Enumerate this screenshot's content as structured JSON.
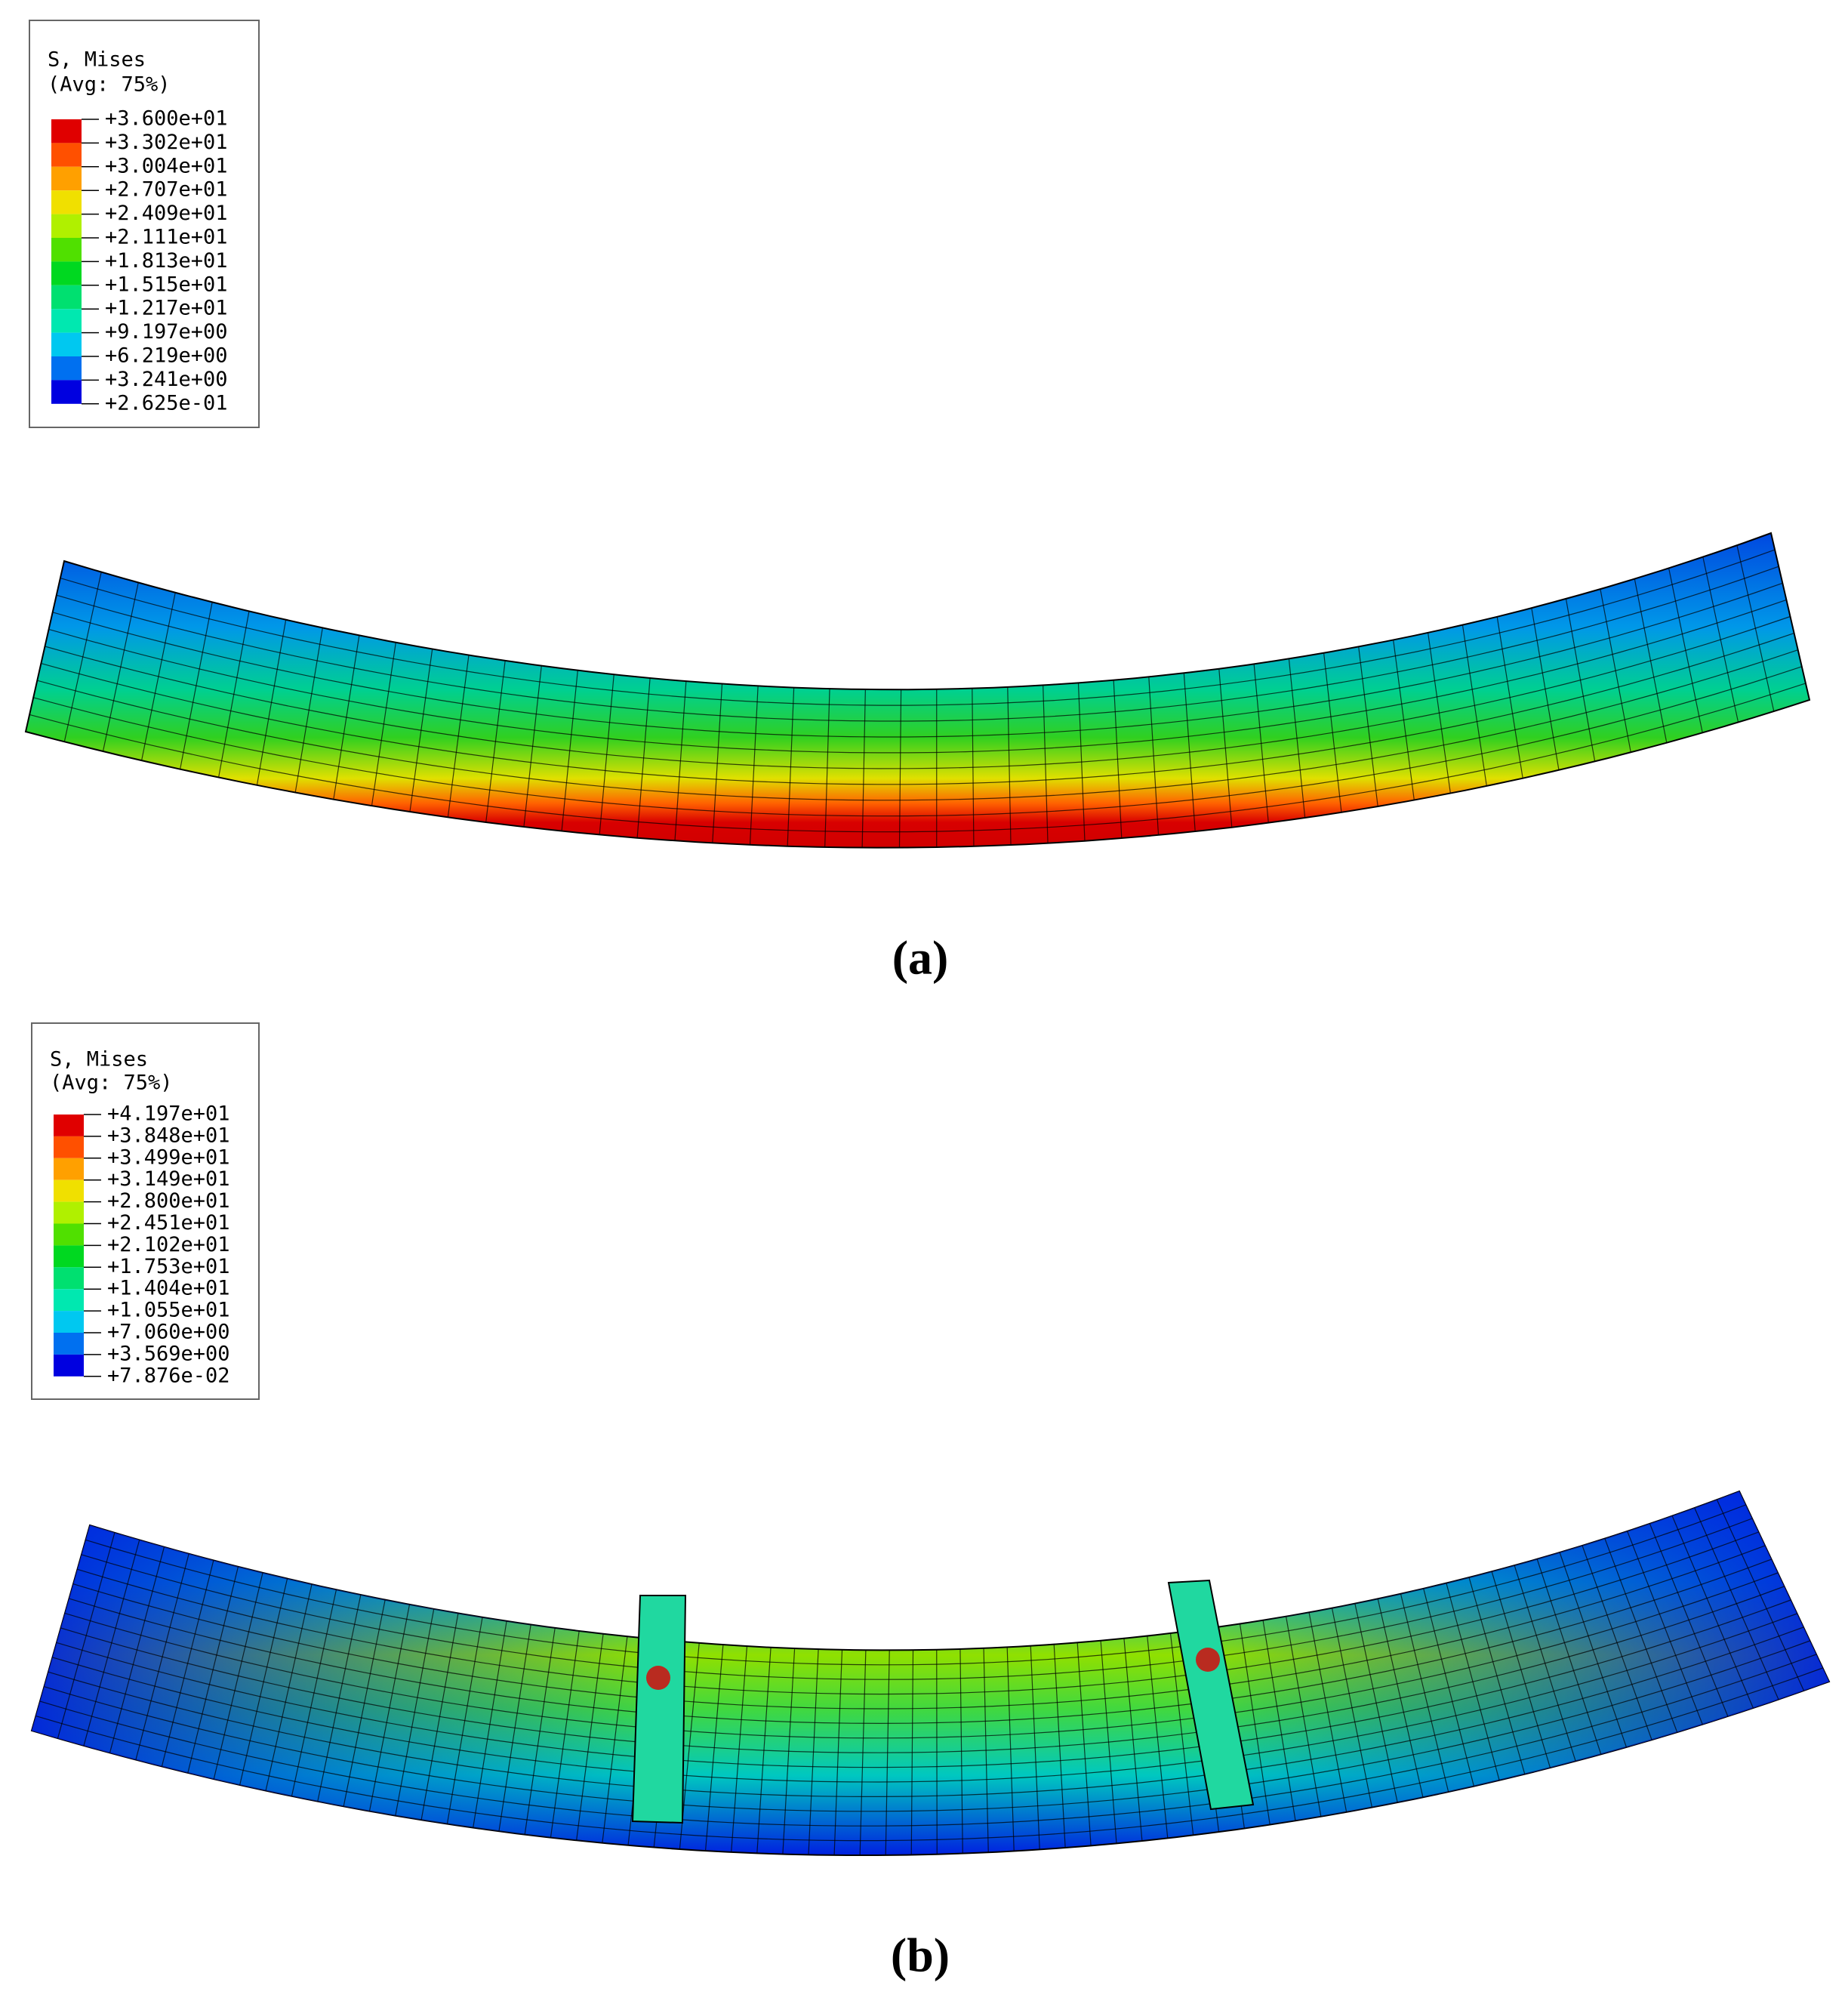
{
  "panels": [
    {
      "legend": {
        "title": "S, Mises",
        "subtitle": "(Avg: 75%)",
        "labels": [
          "+3.600e+01",
          "+3.302e+01",
          "+3.004e+01",
          "+2.707e+01",
          "+2.409e+01",
          "+2.111e+01",
          "+1.813e+01",
          "+1.515e+01",
          "+1.217e+01",
          "+9.197e+00",
          "+6.219e+00",
          "+3.241e+00",
          "+2.625e-01"
        ]
      },
      "caption": "(a)"
    },
    {
      "legend": {
        "title": "S, Mises",
        "subtitle": "(Avg: 75%)",
        "labels": [
          "+4.197e+01",
          "+3.848e+01",
          "+3.499e+01",
          "+3.149e+01",
          "+2.800e+01",
          "+2.451e+01",
          "+2.102e+01",
          "+1.753e+01",
          "+1.404e+01",
          "+1.055e+01",
          "+7.060e+00",
          "+3.569e+00",
          "+7.876e-02"
        ]
      },
      "caption": "(b)"
    }
  ]
}
